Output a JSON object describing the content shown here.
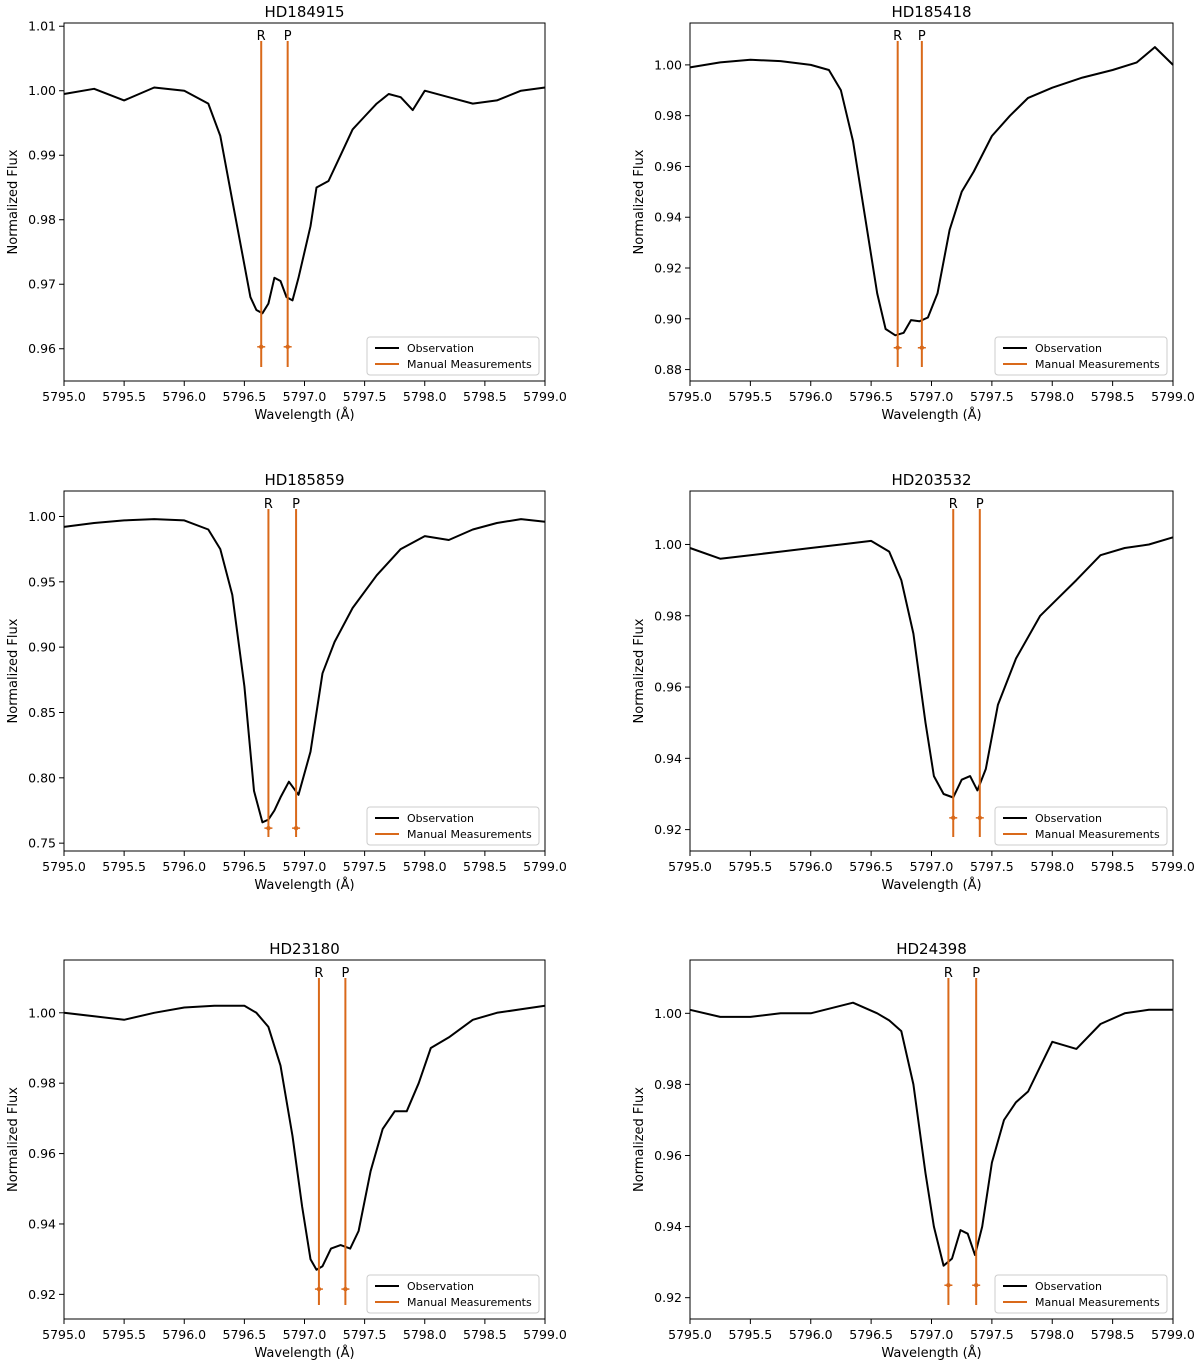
{
  "chart_data": [
    {
      "type": "line",
      "title": "HD184915",
      "xlabel": "Wavelength (Å)",
      "ylabel": "Normalized Flux",
      "xlim": [
        5795.0,
        5799.0
      ],
      "ylim": [
        0.955,
        1.0105
      ],
      "xticks": [
        "5795.0",
        "5795.5",
        "5796.0",
        "5796.5",
        "5797.0",
        "5797.5",
        "5798.0",
        "5798.5",
        "5799.0"
      ],
      "yticks": [
        "0.96",
        "0.97",
        "0.98",
        "0.99",
        "1.00",
        "1.01"
      ],
      "series": [
        {
          "name": "Observation",
          "color": "#000000",
          "x": [
            5795.0,
            5795.25,
            5795.5,
            5795.75,
            5796.0,
            5796.2,
            5796.3,
            5796.4,
            5796.5,
            5796.55,
            5796.6,
            5796.65,
            5796.7,
            5796.75,
            5796.8,
            5796.85,
            5796.9,
            5796.95,
            5797.0,
            5797.05,
            5797.1,
            5797.2,
            5797.3,
            5797.4,
            5797.5,
            5797.6,
            5797.7,
            5797.8,
            5797.9,
            5798.0,
            5798.2,
            5798.4,
            5798.6,
            5798.8,
            5799.0
          ],
          "y": [
            0.9995,
            1.0003,
            0.9985,
            1.0005,
            1.0,
            0.998,
            0.993,
            0.983,
            0.973,
            0.968,
            0.966,
            0.9655,
            0.967,
            0.971,
            0.9705,
            0.968,
            0.9675,
            0.971,
            0.975,
            0.979,
            0.985,
            0.986,
            0.99,
            0.994,
            0.996,
            0.998,
            0.9995,
            0.999,
            0.997,
            1.0,
            0.999,
            0.998,
            0.9985,
            1.0,
            1.0005
          ]
        }
      ],
      "markers": [
        {
          "label": "R",
          "x": 5796.64,
          "y": 0.9603
        },
        {
          "label": "P",
          "x": 5796.86,
          "y": 0.9603
        }
      ],
      "legend": {
        "position": "lower-right",
        "entries": [
          "Observation",
          "Manual Measurements"
        ]
      }
    },
    {
      "type": "line",
      "title": "HD185418",
      "xlabel": "Wavelength (Å)",
      "ylabel": "Normalized Flux",
      "xlim": [
        5795.0,
        5799.0
      ],
      "ylim": [
        0.8755,
        1.0165
      ],
      "xticks": [
        "5795.0",
        "5795.5",
        "5796.0",
        "5796.5",
        "5797.0",
        "5797.5",
        "5798.0",
        "5798.5",
        "5799.0"
      ],
      "yticks": [
        "0.88",
        "0.90",
        "0.92",
        "0.94",
        "0.96",
        "0.98",
        "1.00"
      ],
      "series": [
        {
          "name": "Observation",
          "color": "#000000",
          "x": [
            5795.0,
            5795.25,
            5795.5,
            5795.75,
            5796.0,
            5796.15,
            5796.25,
            5796.35,
            5796.45,
            5796.55,
            5796.62,
            5796.7,
            5796.77,
            5796.83,
            5796.9,
            5796.97,
            5797.05,
            5797.15,
            5797.25,
            5797.35,
            5797.5,
            5797.65,
            5797.8,
            5798.0,
            5798.25,
            5798.5,
            5798.7,
            5798.85,
            5799.0
          ],
          "y": [
            0.999,
            1.001,
            1.002,
            1.0015,
            1.0,
            0.998,
            0.99,
            0.97,
            0.94,
            0.91,
            0.896,
            0.8935,
            0.8945,
            0.8995,
            0.899,
            0.9005,
            0.91,
            0.935,
            0.95,
            0.958,
            0.972,
            0.98,
            0.987,
            0.991,
            0.995,
            0.998,
            1.001,
            1.007,
            1.0
          ]
        }
      ],
      "markers": [
        {
          "label": "R",
          "x": 5796.72,
          "y": 0.8886
        },
        {
          "label": "P",
          "x": 5796.92,
          "y": 0.8886
        }
      ],
      "legend": {
        "position": "lower-right",
        "entries": [
          "Observation",
          "Manual Measurements"
        ]
      }
    },
    {
      "type": "line",
      "title": "HD185859",
      "xlabel": "Wavelength (Å)",
      "ylabel": "Normalized Flux",
      "xlim": [
        5795.0,
        5799.0
      ],
      "ylim": [
        0.744,
        1.0195
      ],
      "xticks": [
        "5795.0",
        "5795.5",
        "5796.0",
        "5796.5",
        "5797.0",
        "5797.5",
        "5798.0",
        "5798.5",
        "5799.0"
      ],
      "yticks": [
        "0.75",
        "0.80",
        "0.85",
        "0.90",
        "0.95",
        "1.00"
      ],
      "series": [
        {
          "name": "Observation",
          "color": "#000000",
          "x": [
            5795.0,
            5795.25,
            5795.5,
            5795.75,
            5796.0,
            5796.2,
            5796.3,
            5796.4,
            5796.5,
            5796.58,
            5796.65,
            5796.7,
            5796.75,
            5796.8,
            5796.87,
            5796.95,
            5797.05,
            5797.15,
            5797.25,
            5797.4,
            5797.6,
            5797.8,
            5798.0,
            5798.2,
            5798.4,
            5798.6,
            5798.8,
            5799.0
          ],
          "y": [
            0.992,
            0.995,
            0.997,
            0.998,
            0.997,
            0.99,
            0.975,
            0.94,
            0.87,
            0.79,
            0.766,
            0.768,
            0.775,
            0.785,
            0.797,
            0.787,
            0.82,
            0.88,
            0.904,
            0.93,
            0.955,
            0.975,
            0.985,
            0.982,
            0.99,
            0.995,
            0.998,
            0.996
          ]
        }
      ],
      "markers": [
        {
          "label": "R",
          "x": 5796.7,
          "y": 0.7615
        },
        {
          "label": "P",
          "x": 5796.93,
          "y": 0.7615
        }
      ],
      "legend": {
        "position": "lower-right",
        "entries": [
          "Observation",
          "Manual Measurements"
        ]
      }
    },
    {
      "type": "line",
      "title": "HD203532",
      "xlabel": "Wavelength (Å)",
      "ylabel": "Normalized Flux",
      "xlim": [
        5795.0,
        5799.0
      ],
      "ylim": [
        0.914,
        1.015
      ],
      "xticks": [
        "5795.0",
        "5795.5",
        "5796.0",
        "5796.5",
        "5797.0",
        "5797.5",
        "5798.0",
        "5798.5",
        "5799.0"
      ],
      "yticks": [
        "0.92",
        "0.94",
        "0.96",
        "0.98",
        "1.00"
      ],
      "series": [
        {
          "name": "Observation",
          "color": "#000000",
          "x": [
            5795.0,
            5795.25,
            5795.5,
            5795.75,
            5796.0,
            5796.25,
            5796.5,
            5796.65,
            5796.75,
            5796.85,
            5796.95,
            5797.02,
            5797.1,
            5797.18,
            5797.25,
            5797.32,
            5797.38,
            5797.45,
            5797.55,
            5797.7,
            5797.9,
            5798.05,
            5798.2,
            5798.4,
            5798.6,
            5798.8,
            5799.0
          ],
          "y": [
            0.999,
            0.996,
            0.997,
            0.998,
            0.999,
            1.0,
            1.001,
            0.998,
            0.99,
            0.975,
            0.95,
            0.935,
            0.93,
            0.929,
            0.934,
            0.935,
            0.931,
            0.937,
            0.955,
            0.968,
            0.98,
            0.985,
            0.99,
            0.997,
            0.999,
            1.0,
            1.002
          ]
        }
      ],
      "markers": [
        {
          "label": "R",
          "x": 5797.18,
          "y": 0.9233
        },
        {
          "label": "P",
          "x": 5797.4,
          "y": 0.9233
        }
      ],
      "legend": {
        "position": "lower-right",
        "entries": [
          "Observation",
          "Manual Measurements"
        ]
      }
    },
    {
      "type": "line",
      "title": "HD23180",
      "xlabel": "Wavelength (Å)",
      "ylabel": "Normalized Flux",
      "xlim": [
        5795.0,
        5799.0
      ],
      "ylim": [
        0.913,
        1.015
      ],
      "xticks": [
        "5795.0",
        "5795.5",
        "5796.0",
        "5796.5",
        "5797.0",
        "5797.5",
        "5798.0",
        "5798.5",
        "5799.0"
      ],
      "yticks": [
        "0.92",
        "0.94",
        "0.96",
        "0.98",
        "1.00"
      ],
      "series": [
        {
          "name": "Observation",
          "color": "#000000",
          "x": [
            5795.0,
            5795.25,
            5795.5,
            5795.75,
            5796.0,
            5796.25,
            5796.5,
            5796.6,
            5796.7,
            5796.8,
            5796.9,
            5796.98,
            5797.05,
            5797.1,
            5797.15,
            5797.22,
            5797.3,
            5797.38,
            5797.45,
            5797.55,
            5797.65,
            5797.75,
            5797.85,
            5797.95,
            5798.05,
            5798.2,
            5798.4,
            5798.6,
            5798.8,
            5799.0
          ],
          "y": [
            1.0,
            0.999,
            0.998,
            1.0,
            1.0015,
            1.002,
            1.002,
            1.0,
            0.996,
            0.985,
            0.965,
            0.945,
            0.93,
            0.927,
            0.928,
            0.933,
            0.934,
            0.933,
            0.938,
            0.955,
            0.967,
            0.972,
            0.972,
            0.98,
            0.99,
            0.993,
            0.998,
            1.0,
            1.001,
            1.002
          ]
        }
      ],
      "markers": [
        {
          "label": "R",
          "x": 5797.12,
          "y": 0.9215
        },
        {
          "label": "P",
          "x": 5797.34,
          "y": 0.9215
        }
      ],
      "legend": {
        "position": "lower-right",
        "entries": [
          "Observation",
          "Manual Measurements"
        ]
      }
    },
    {
      "type": "line",
      "title": "HD24398",
      "xlabel": "Wavelength (Å)",
      "ylabel": "Normalized Flux",
      "xlim": [
        5795.0,
        5799.0
      ],
      "ylim": [
        0.914,
        1.015
      ],
      "xticks": [
        "5795.0",
        "5795.5",
        "5796.0",
        "5796.5",
        "5797.0",
        "5797.5",
        "5798.0",
        "5798.5",
        "5799.0"
      ],
      "yticks": [
        "0.92",
        "0.94",
        "0.96",
        "0.98",
        "1.00"
      ],
      "series": [
        {
          "name": "Observation",
          "color": "#000000",
          "x": [
            5795.0,
            5795.25,
            5795.5,
            5795.75,
            5796.0,
            5796.35,
            5796.55,
            5796.65,
            5796.75,
            5796.85,
            5796.95,
            5797.02,
            5797.1,
            5797.17,
            5797.24,
            5797.3,
            5797.36,
            5797.42,
            5797.5,
            5797.6,
            5797.7,
            5797.8,
            5797.9,
            5798.0,
            5798.2,
            5798.4,
            5798.6,
            5798.8,
            5799.0
          ],
          "y": [
            1.001,
            0.999,
            0.999,
            1.0,
            1.0,
            1.003,
            1.0,
            0.998,
            0.995,
            0.98,
            0.955,
            0.94,
            0.929,
            0.931,
            0.939,
            0.938,
            0.932,
            0.94,
            0.958,
            0.97,
            0.975,
            0.978,
            0.985,
            0.992,
            0.99,
            0.997,
            1.0,
            1.001,
            1.001
          ]
        }
      ],
      "markers": [
        {
          "label": "R",
          "x": 5797.14,
          "y": 0.9235
        },
        {
          "label": "P",
          "x": 5797.37,
          "y": 0.9235
        }
      ],
      "legend": {
        "position": "lower-right",
        "entries": [
          "Observation",
          "Manual Measurements"
        ]
      }
    }
  ],
  "style": {
    "observation_color": "#000000",
    "measurement_color": "#d9691a"
  }
}
